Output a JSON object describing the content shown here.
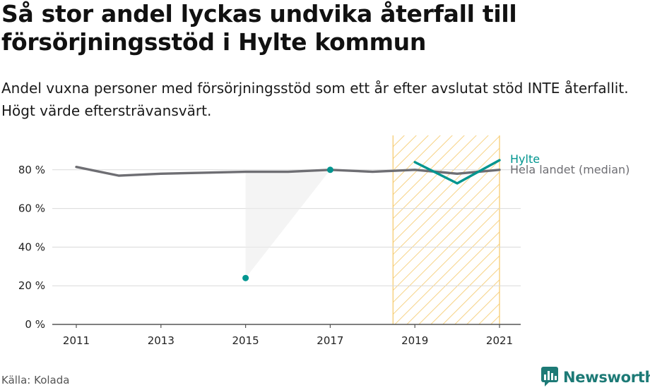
{
  "title": "Så stor andel lyckas undvika återfall till försörjningsstöd i Hylte kommun",
  "subtitle": "Andel vuxna personer med försörjningsstöd som ett år efter avslutat stöd INTE återfallit. Högt värde eftersträvansvärt.",
  "source": "Källa: Kolada",
  "brand": "Newsworthy",
  "colors": {
    "hylte": "#00958f",
    "median": "#6e6e73",
    "highlight_stroke": "#f5c867",
    "grid": "#d9d9d9",
    "brand": "#1d7a76"
  },
  "chart_data": {
    "type": "line",
    "y_ticks": [
      "0 %",
      "20 %",
      "40 %",
      "60 %",
      "80 %"
    ],
    "x_ticks": [
      "2011",
      "2013",
      "2015",
      "2017",
      "2019",
      "2021"
    ],
    "ylim": [
      0,
      100
    ],
    "xlim": [
      2010.5,
      2021.5
    ],
    "highlight_range": [
      2018.5,
      2021
    ],
    "series": [
      {
        "name": "Hylte",
        "color": "#00958f",
        "x": [
          2011,
          2012,
          2013,
          2014,
          2015,
          2016,
          2017,
          2018,
          2019,
          2020,
          2021
        ],
        "values": [
          null,
          null,
          null,
          null,
          24,
          null,
          80,
          null,
          84,
          73,
          85
        ]
      },
      {
        "name": "Hela landet (median)",
        "color": "#6e6e73",
        "x": [
          2011,
          2012,
          2013,
          2014,
          2015,
          2016,
          2017,
          2018,
          2019,
          2020,
          2021
        ],
        "values": [
          81.5,
          77,
          78,
          78.5,
          79,
          79,
          80,
          79,
          80,
          78,
          80
        ]
      }
    ]
  }
}
